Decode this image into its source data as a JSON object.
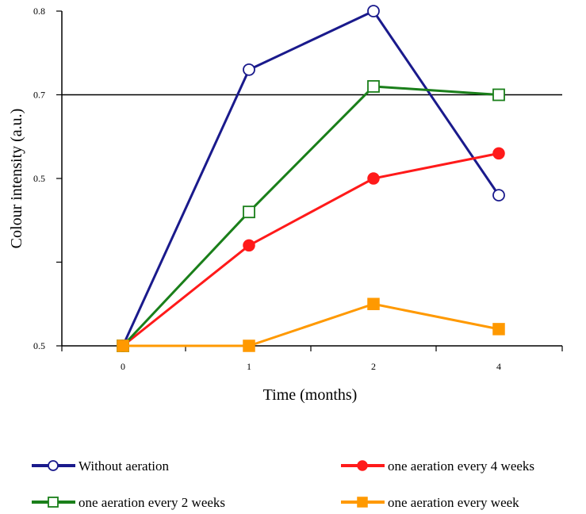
{
  "chart_data": {
    "type": "line",
    "title": "",
    "xlabel": "Time (months)",
    "ylabel": "Colour intensity (a.u.)",
    "x": [
      "0",
      "1",
      "2",
      "4"
    ],
    "y_ticks": [
      "0.5",
      "0.5",
      "0.7",
      "0.8"
    ],
    "ylim": [
      0.4,
      0.8
    ],
    "reference_line": 0.7,
    "grid": false,
    "legend_position": "bottom",
    "series": [
      {
        "name": "Without aeration",
        "values": [
          0.4,
          0.73,
          0.8,
          0.58
        ],
        "color": "#1a1a8c",
        "marker": "circle-open"
      },
      {
        "name": "one aeration every 4 weeks",
        "values": [
          0.4,
          0.52,
          0.6,
          0.63
        ],
        "color": "#ff1a1a",
        "marker": "circle-filled"
      },
      {
        "name": "one aeration every 2 weeks",
        "values": [
          0.4,
          0.56,
          0.71,
          0.7
        ],
        "color": "#1a7f1a",
        "marker": "square-open"
      },
      {
        "name": "one aeration every week",
        "values": [
          0.4,
          0.4,
          0.45,
          0.42
        ],
        "color": "#ff9900",
        "marker": "square-filled"
      }
    ]
  }
}
